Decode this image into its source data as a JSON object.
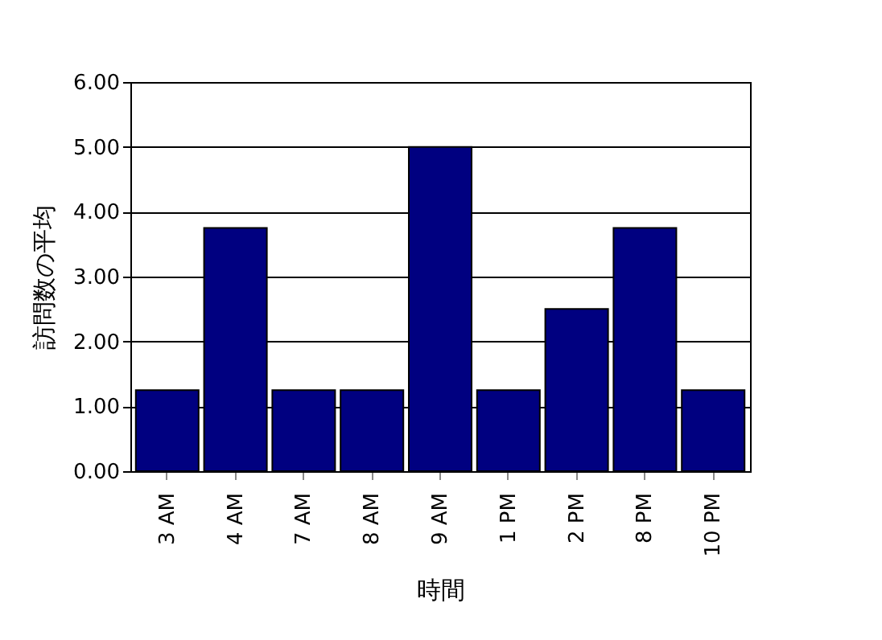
{
  "chart_data": {
    "type": "bar",
    "xlabel": "時間",
    "ylabel": "訪問数の平均",
    "categories": [
      "3 AM",
      "4 AM",
      "7 AM",
      "8 AM",
      "9 AM",
      "1 PM",
      "2 PM",
      "8 PM",
      "10 PM"
    ],
    "values": [
      1.25,
      3.75,
      1.25,
      1.25,
      5.0,
      1.25,
      2.5,
      3.75,
      1.25
    ],
    "color": "#000080",
    "ylim": [
      0,
      6
    ],
    "yticks": [
      {
        "value": 0,
        "label": "0.00"
      },
      {
        "value": 1,
        "label": "1.00"
      },
      {
        "value": 2,
        "label": "2.00"
      },
      {
        "value": 3,
        "label": "3.00"
      },
      {
        "value": 4,
        "label": "4.00"
      },
      {
        "value": 5,
        "label": "5.00"
      },
      {
        "value": 6,
        "label": "6.00"
      }
    ],
    "grid": true
  }
}
